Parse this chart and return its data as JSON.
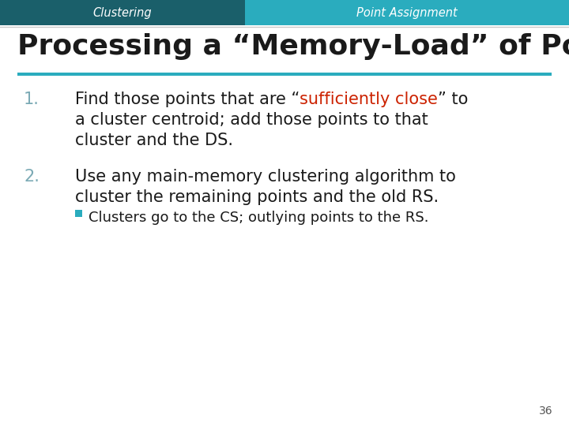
{
  "header_left_text": "Clustering",
  "header_right_text": "Point Assignment",
  "header_left_color": "#1a5f6a",
  "header_right_color": "#2aacbe",
  "header_text_color": "#ffffff",
  "title": "Processing a “Memory-Load” of Points",
  "title_color": "#1a1a1a",
  "divider_color": "#2aacbe",
  "number_color": "#7baab5",
  "item1_pre": "Find those points that are “",
  "item1_highlight": "sufficiently close",
  "item1_post": "” to",
  "item1_line2": "a cluster centroid; add those points to that",
  "item1_line3": "cluster and the DS.",
  "item2_line1": "Use any main-memory clustering algorithm to",
  "item2_line2": "cluster the remaining points and the old RS.",
  "bullet_line": "Clusters go to the CS; outlying points to the RS.",
  "highlight_color": "#cc2200",
  "body_color": "#1a1a1a",
  "bullet_color": "#2aacbe",
  "page_number": "36",
  "bg_color": "#ffffff"
}
